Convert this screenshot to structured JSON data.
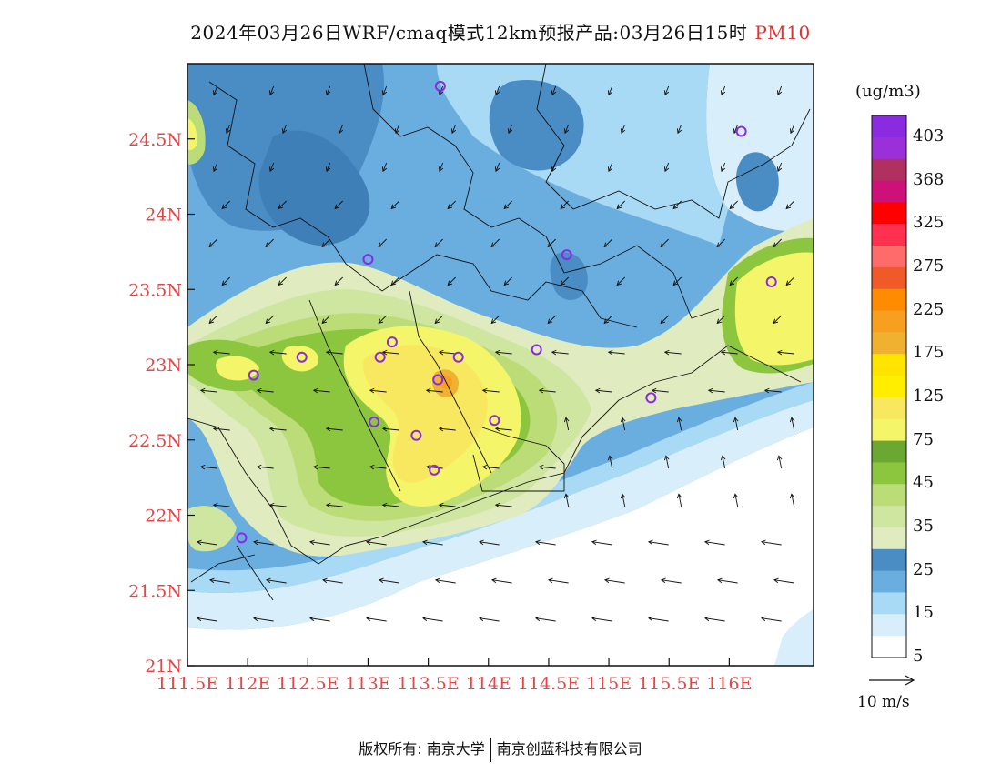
{
  "title": {
    "main": "2024年03月26日WRF/cmaq模式12km预报产品:03月26日15时",
    "pollutant": "PM10"
  },
  "axes": {
    "lat_ticks": [
      "24.5N",
      "24N",
      "23.5N",
      "23N",
      "22.5N",
      "22N",
      "21.5N",
      "21N"
    ],
    "lon_ticks": [
      "111.5E",
      "112E",
      "112.5E",
      "113E",
      "113.5E",
      "114E",
      "114.5E",
      "115E",
      "115.5E",
      "116E"
    ],
    "lat_range": [
      21,
      25
    ],
    "lon_range": [
      111.5,
      116.7
    ]
  },
  "colorbar": {
    "units": "(ug/m3)",
    "labels": [
      "403",
      "368",
      "325",
      "275",
      "225",
      "175",
      "125",
      "75",
      "45",
      "35",
      "25",
      "15",
      "5"
    ],
    "colors_top_to_bottom": [
      "#8a2be2",
      "#9b30d9",
      "#b03060",
      "#d0107a",
      "#ff0000",
      "#ff3050",
      "#ff6b6b",
      "#f05a28",
      "#ff8c00",
      "#f7a020",
      "#f0b030",
      "#ffe400",
      "#ffee00",
      "#f8e860",
      "#f5f56a",
      "#6aa832",
      "#8cc63f",
      "#bcdc78",
      "#cfe6a0",
      "#e0ecc0",
      "#4a8cc4",
      "#6aaee0",
      "#a8daf5",
      "#d8eefa",
      "#ffffff"
    ]
  },
  "wind_reference": {
    "label": "10 m/s"
  },
  "footer": {
    "left": "版权所有: 南京大学",
    "right": "南京创蓝科技有限公司"
  },
  "monitoring_sites": [
    {
      "lon": 113.6,
      "lat": 24.85
    },
    {
      "lon": 116.1,
      "lat": 24.55
    },
    {
      "lon": 113.0,
      "lat": 23.7
    },
    {
      "lon": 114.65,
      "lat": 23.73
    },
    {
      "lon": 116.35,
      "lat": 23.55
    },
    {
      "lon": 112.45,
      "lat": 23.05
    },
    {
      "lon": 113.1,
      "lat": 23.05
    },
    {
      "lon": 113.2,
      "lat": 23.15
    },
    {
      "lon": 113.75,
      "lat": 23.05
    },
    {
      "lon": 114.4,
      "lat": 23.1
    },
    {
      "lon": 112.05,
      "lat": 22.93
    },
    {
      "lon": 113.05,
      "lat": 22.62
    },
    {
      "lon": 113.4,
      "lat": 22.53
    },
    {
      "lon": 114.05,
      "lat": 22.63
    },
    {
      "lon": 113.55,
      "lat": 22.3
    },
    {
      "lon": 115.35,
      "lat": 22.78
    },
    {
      "lon": 111.95,
      "lat": 21.85
    },
    {
      "lon": 113.58,
      "lat": 22.9
    }
  ]
}
